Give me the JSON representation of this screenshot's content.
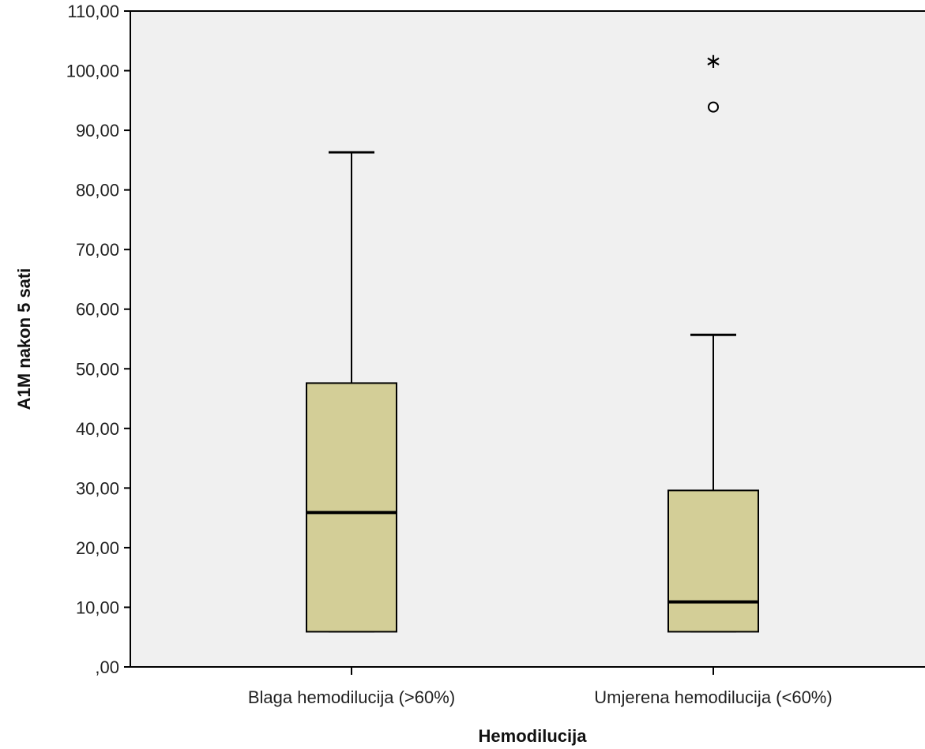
{
  "chart_data": {
    "type": "boxplot",
    "xlabel": "Hemodilucija",
    "ylabel": "A1M nakon 5 sati",
    "ylim": [
      0,
      110
    ],
    "yticks": [
      0,
      10,
      20,
      30,
      40,
      50,
      60,
      70,
      80,
      90,
      100,
      110
    ],
    "ytick_labels": [
      ",00",
      "10,00",
      "20,00",
      "30,00",
      "40,00",
      "50,00",
      "60,00",
      "70,00",
      "80,00",
      "90,00",
      "100,00",
      "110,00"
    ],
    "categories": [
      "Blaga hemodilucija (>60%)",
      "Umjerena hemodilucija (<60%)"
    ],
    "boxes": [
      {
        "whisker_low": 5.9,
        "q1": 5.9,
        "median": 25.9,
        "q3": 47.6,
        "whisker_high": 86.3,
        "outliers": [],
        "extremes": []
      },
      {
        "whisker_low": 5.9,
        "q1": 5.9,
        "median": 10.9,
        "q3": 29.6,
        "whisker_high": 55.7,
        "outliers": [
          93.9
        ],
        "extremes": [
          101.9
        ]
      }
    ],
    "colors": {
      "plot_bg": "#f0f0f0",
      "box_fill": "#d3ce97",
      "stroke": "#000000"
    }
  }
}
